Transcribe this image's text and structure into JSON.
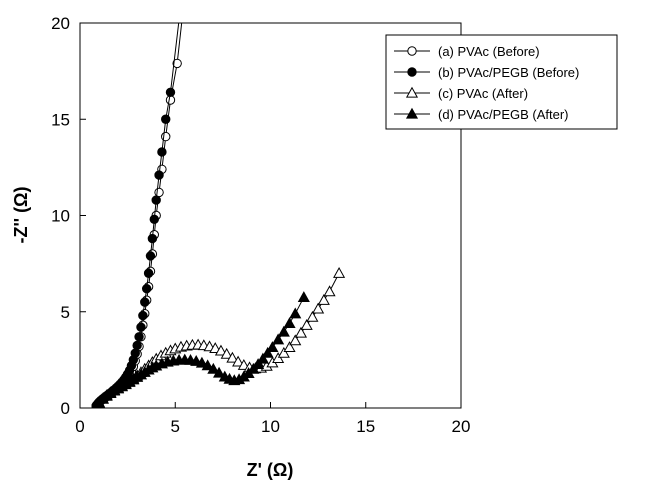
{
  "chart_data": {
    "type": "line",
    "xlabel": "Z' (Ω)",
    "ylabel": "-Z'' (Ω)",
    "xlim": [
      0,
      20
    ],
    "ylim": [
      0,
      20
    ],
    "xticks": [
      0,
      5,
      10,
      15,
      20
    ],
    "yticks": [
      0,
      5,
      10,
      15,
      20
    ],
    "grid": false,
    "legend_position": "top-right",
    "series": [
      {
        "name": "(a) PVAc (Before)",
        "marker": "circle-open",
        "x": [
          0.85,
          0.9,
          0.95,
          1.0,
          1.05,
          1.1,
          1.2,
          1.3,
          1.4,
          1.5,
          1.6,
          1.7,
          1.8,
          1.9,
          2.0,
          2.1,
          2.2,
          2.3,
          2.4,
          2.5,
          2.6,
          2.7,
          2.8,
          2.9,
          3.0,
          3.1,
          3.2,
          3.3,
          3.4,
          3.5,
          3.6,
          3.7,
          3.8,
          3.9,
          4.0,
          4.15,
          4.3,
          4.5,
          4.75,
          5.1
        ],
        "y": [
          0.1,
          0.16,
          0.22,
          0.28,
          0.33,
          0.38,
          0.45,
          0.52,
          0.6,
          0.66,
          0.73,
          0.8,
          0.88,
          0.96,
          1.05,
          1.14,
          1.22,
          1.32,
          1.42,
          1.55,
          1.7,
          1.9,
          2.15,
          2.45,
          2.8,
          3.2,
          3.7,
          4.3,
          4.9,
          5.6,
          6.3,
          7.1,
          8.0,
          9.0,
          10.0,
          11.2,
          12.4,
          14.1,
          16.0,
          17.9
        ]
      },
      {
        "name": "(b) PVAc/PEGB (Before)",
        "marker": "circle-filled",
        "x": [
          0.85,
          0.9,
          0.95,
          1.0,
          1.05,
          1.1,
          1.2,
          1.3,
          1.4,
          1.5,
          1.6,
          1.7,
          1.8,
          1.9,
          2.0,
          2.1,
          2.2,
          2.3,
          2.4,
          2.5,
          2.6,
          2.7,
          2.8,
          2.9,
          3.0,
          3.1,
          3.2,
          3.3,
          3.4,
          3.5,
          3.6,
          3.7,
          3.8,
          3.9,
          4.0,
          4.15,
          4.3,
          4.5,
          4.75
        ],
        "y": [
          0.12,
          0.18,
          0.24,
          0.3,
          0.35,
          0.4,
          0.48,
          0.56,
          0.64,
          0.71,
          0.79,
          0.87,
          0.95,
          1.04,
          1.13,
          1.23,
          1.34,
          1.46,
          1.6,
          1.76,
          1.95,
          2.2,
          2.5,
          2.85,
          3.25,
          3.7,
          4.2,
          4.8,
          5.5,
          6.2,
          7.0,
          7.9,
          8.8,
          9.8,
          10.8,
          12.1,
          13.3,
          15.0,
          16.4
        ]
      },
      {
        "name": "(c) PVAc (After)",
        "marker": "triangle-open",
        "x": [
          0.85,
          1.0,
          1.2,
          1.4,
          1.6,
          1.8,
          2.0,
          2.2,
          2.4,
          2.6,
          2.8,
          3.0,
          3.2,
          3.4,
          3.6,
          3.8,
          4.0,
          4.25,
          4.5,
          4.75,
          5.0,
          5.3,
          5.6,
          5.9,
          6.2,
          6.5,
          6.8,
          7.1,
          7.4,
          7.7,
          8.0,
          8.3,
          8.6,
          8.9,
          9.2,
          9.5,
          9.8,
          10.1,
          10.4,
          10.7,
          11.0,
          11.3,
          11.6,
          11.9,
          12.2,
          12.5,
          12.8,
          13.1,
          13.6
        ],
        "y": [
          0.1,
          0.28,
          0.48,
          0.65,
          0.8,
          0.93,
          1.05,
          1.15,
          1.26,
          1.38,
          1.52,
          1.68,
          1.85,
          2.03,
          2.2,
          2.38,
          2.55,
          2.72,
          2.86,
          2.98,
          3.08,
          3.17,
          3.23,
          3.27,
          3.28,
          3.25,
          3.19,
          3.1,
          2.97,
          2.8,
          2.6,
          2.4,
          2.22,
          2.1,
          2.05,
          2.08,
          2.18,
          2.35,
          2.58,
          2.85,
          3.15,
          3.5,
          3.9,
          4.3,
          4.72,
          5.15,
          5.6,
          6.05,
          7.0
        ]
      },
      {
        "name": "(d) PVAc/PEGB (After)",
        "marker": "triangle-filled",
        "x": [
          0.85,
          1.0,
          1.2,
          1.4,
          1.6,
          1.8,
          2.0,
          2.2,
          2.4,
          2.6,
          2.8,
          3.0,
          3.2,
          3.4,
          3.6,
          3.8,
          4.0,
          4.3,
          4.6,
          4.9,
          5.2,
          5.5,
          5.8,
          6.1,
          6.4,
          6.7,
          7.0,
          7.3,
          7.6,
          7.85,
          8.1,
          8.35,
          8.6,
          8.85,
          9.1,
          9.35,
          9.6,
          9.85,
          10.1,
          10.4,
          10.7,
          11.0,
          11.3,
          11.75
        ],
        "y": [
          0.1,
          0.27,
          0.46,
          0.62,
          0.76,
          0.89,
          1.0,
          1.11,
          1.22,
          1.34,
          1.47,
          1.6,
          1.73,
          1.86,
          1.98,
          2.09,
          2.19,
          2.3,
          2.39,
          2.45,
          2.49,
          2.5,
          2.48,
          2.43,
          2.34,
          2.2,
          2.02,
          1.82,
          1.62,
          1.5,
          1.43,
          1.48,
          1.62,
          1.8,
          2.02,
          2.27,
          2.55,
          2.85,
          3.15,
          3.55,
          3.95,
          4.4,
          4.9,
          5.75
        ]
      }
    ]
  }
}
